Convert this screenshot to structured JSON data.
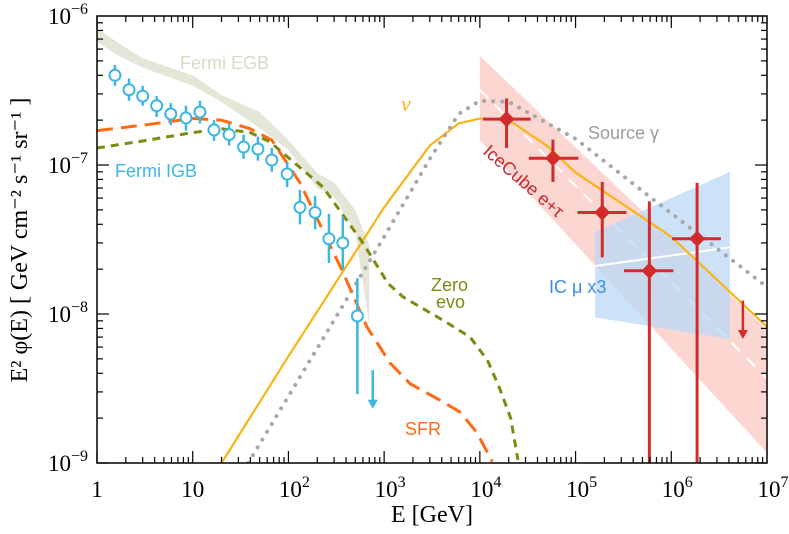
{
  "chart_data": {
    "type": "line",
    "xlabel": "E [GeV]",
    "ylabel": "E² φ(E)  [ GeV cm⁻² s⁻¹ sr⁻¹ ]",
    "xscale": "log",
    "yscale": "log",
    "xlim": [
      1,
      10000000
    ],
    "ylim": [
      1e-09,
      1e-06
    ],
    "grid": false,
    "x_ticks": [
      {
        "value": 1,
        "base": "1",
        "exp": ""
      },
      {
        "value": 10,
        "base": "10",
        "exp": ""
      },
      {
        "value": 100,
        "base": "10",
        "exp": "2"
      },
      {
        "value": 1000,
        "base": "10",
        "exp": "3"
      },
      {
        "value": 10000,
        "base": "10",
        "exp": "4"
      },
      {
        "value": 100000,
        "base": "10",
        "exp": "5"
      },
      {
        "value": 1000000,
        "base": "10",
        "exp": "6"
      },
      {
        "value": 10000000,
        "base": "10",
        "exp": "7"
      }
    ],
    "y_ticks": [
      {
        "value": 1e-06,
        "base": "10",
        "exp": "−6"
      },
      {
        "value": 1e-07,
        "base": "10",
        "exp": "−7"
      },
      {
        "value": 1e-08,
        "base": "10",
        "exp": "−8"
      },
      {
        "value": 1e-09,
        "base": "10",
        "exp": "−9"
      }
    ],
    "bands": [
      {
        "name": "Fermi EGB",
        "color": "#e6e6d8",
        "E": [
          1,
          1.6,
          3,
          10,
          20,
          50,
          100,
          200,
          300,
          500,
          700
        ],
        "hi": [
          8.3e-07,
          6.7e-07,
          5.2e-07,
          4e-07,
          2.95e-07,
          2.27e-07,
          1.47e-07,
          8.8e-08,
          7.6e-08,
          5e-08,
          2.9e-08
        ],
        "lo": [
          6.7e-07,
          5.5e-07,
          4.5e-07,
          3.4e-07,
          2.65e-07,
          1.77e-07,
          1.26e-07,
          7e-08,
          6.1e-08,
          3.5e-08,
          8.4e-09
        ]
      },
      {
        "name": "IceCube e+τ",
        "color": "#fbc9c2",
        "E": [
          10000,
          10000000
        ],
        "hi": [
          5.4e-07,
          7.8e-09
        ],
        "lo": [
          1.47e-07,
          1.17e-09
        ],
        "best_fit": [
          3.2e-07,
          3.7e-09
        ]
      },
      {
        "name": "IC μ x3",
        "color": "#b9d8f7",
        "E": [
          160000,
          4100000
        ],
        "hi": [
          3.55e-08,
          9e-08
        ],
        "lo": [
          9.5e-09,
          6.8e-09
        ],
        "best_fit": [
          2.1e-08,
          2.8e-08
        ]
      }
    ],
    "series": [
      {
        "name": "ν",
        "color": "#fbb217",
        "style": "solid",
        "E": [
          20,
          100,
          1000,
          3000,
          6000,
          10000,
          20000,
          50000,
          100000,
          1000000,
          10000000
        ],
        "y": [
          1e-09,
          5.2e-09,
          5.2e-08,
          1.35e-07,
          1.9e-07,
          2.05e-07,
          2e-07,
          1.35e-07,
          8.9e-08,
          3.3e-08,
          8.2e-09
        ]
      },
      {
        "name": "Source γ",
        "color": "#a3a3a3",
        "style": "dotted",
        "E": [
          38,
          100,
          1000,
          3000,
          6000,
          10000,
          20000,
          100000,
          600000,
          9000000
        ],
        "y": [
          1e-09,
          2.8e-09,
          3.3e-08,
          1.1e-07,
          2.2e-07,
          2.7e-07,
          2.65e-07,
          1.5e-07,
          6.1e-08,
          1.6e-08
        ]
      },
      {
        "name": "SFR",
        "color": "#ff6a13",
        "style": "long-dash",
        "E": [
          1,
          3,
          10,
          20,
          40,
          67,
          132,
          372,
          660,
          1150,
          1870,
          3800,
          6200,
          9300,
          13500
        ],
        "y": [
          1.7e-07,
          1.85e-07,
          2.05e-07,
          2e-07,
          1.75e-07,
          1.47e-07,
          7.6e-08,
          1.9e-08,
          8.2e-09,
          4.7e-09,
          3.4e-09,
          2.65e-09,
          2.2e-09,
          1.6e-09,
          1.02e-09
        ]
      },
      {
        "name": "Zero evo",
        "color": "#7f8a10",
        "style": "short-dash",
        "E": [
          1,
          3,
          10,
          20,
          40,
          64,
          230,
          600,
          1100,
          1580,
          4100,
          7900,
          12000,
          16000,
          21000,
          25000
        ],
        "y": [
          1.3e-07,
          1.45e-07,
          1.65e-07,
          1.75e-07,
          1.65e-07,
          1.43e-07,
          7.1e-08,
          3e-08,
          1.6e-08,
          1.3e-08,
          9.1e-09,
          7e-09,
          4.9e-09,
          3.2e-09,
          2e-09,
          1.05e-09
        ]
      }
    ],
    "points": [
      {
        "name": "Fermi IGB",
        "color": "#3cb6e3",
        "marker": "open-circle",
        "E": [
          1.54,
          2.16,
          3.0,
          4.2,
          5.9,
          8.5,
          11.9,
          16.7,
          24,
          34,
          48,
          67,
          97,
          132,
          190,
          265,
          370,
          525
        ],
        "y": [
          4e-07,
          3.2e-07,
          2.9e-07,
          2.5e-07,
          2.2e-07,
          2.07e-07,
          2.27e-07,
          1.72e-07,
          1.6e-07,
          1.32e-07,
          1.28e-07,
          1.08e-07,
          8.7e-08,
          5.2e-08,
          4.8e-08,
          3.2e-08,
          3e-08,
          9.7e-09
        ],
        "ylo": [
          3.4e-07,
          2.7e-07,
          2.5e-07,
          2.1e-07,
          1.85e-07,
          1.7e-07,
          1.9e-07,
          1.45e-07,
          1.35e-07,
          1.1e-07,
          1.07e-07,
          9e-08,
          7.1e-08,
          4e-08,
          3.7e-08,
          2.2e-08,
          2e-08,
          2.9e-09
        ],
        "yhi": [
          4.7e-07,
          3.8e-07,
          3.4e-07,
          2.9e-07,
          2.6e-07,
          2.5e-07,
          2.7e-07,
          2e-07,
          1.9e-07,
          1.6e-07,
          1.55e-07,
          1.3e-07,
          1.05e-07,
          6.8e-08,
          6.2e-08,
          4.7e-08,
          4.5e-08,
          1.74e-08
        ],
        "upper_limits": [
          {
            "E": 760,
            "from": 4.2e-09,
            "to": 2.35e-09
          }
        ]
      },
      {
        "name": "IceCube e+τ",
        "color": "#d22b2b",
        "marker": "filled-diamond",
        "E": [
          19000,
          58000,
          190000,
          590000,
          1860000
        ],
        "xlo": [
          10800,
          32500,
          105000,
          320000,
          1020000
        ],
        "xhi": [
          34000,
          107000,
          340000,
          1050000,
          3300000
        ],
        "y": [
          2.03e-07,
          1.11e-07,
          4.8e-08,
          1.95e-08,
          3.2e-08
        ],
        "ylo": [
          1.3e-07,
          7.7e-08,
          2.4e-08,
          1e-09,
          1e-09
        ],
        "yhi": [
          2.8e-07,
          1.48e-07,
          7.7e-08,
          5.7e-08,
          7.6e-08
        ],
        "upper_limits": [
          {
            "E": 5600000,
            "from": 1.23e-08,
            "to": 6.9e-09
          }
        ]
      }
    ],
    "annotations": {
      "fermi_egb": "Fermi EGB",
      "fermi_igb": "Fermi IGB",
      "nu": "ν",
      "source_gamma": "Source γ",
      "icecube": "IceCube e+τ",
      "ic_mu": "IC μ x3",
      "zero_evo_1": "Zero",
      "zero_evo_2": "evo",
      "sfr": "SFR"
    }
  }
}
